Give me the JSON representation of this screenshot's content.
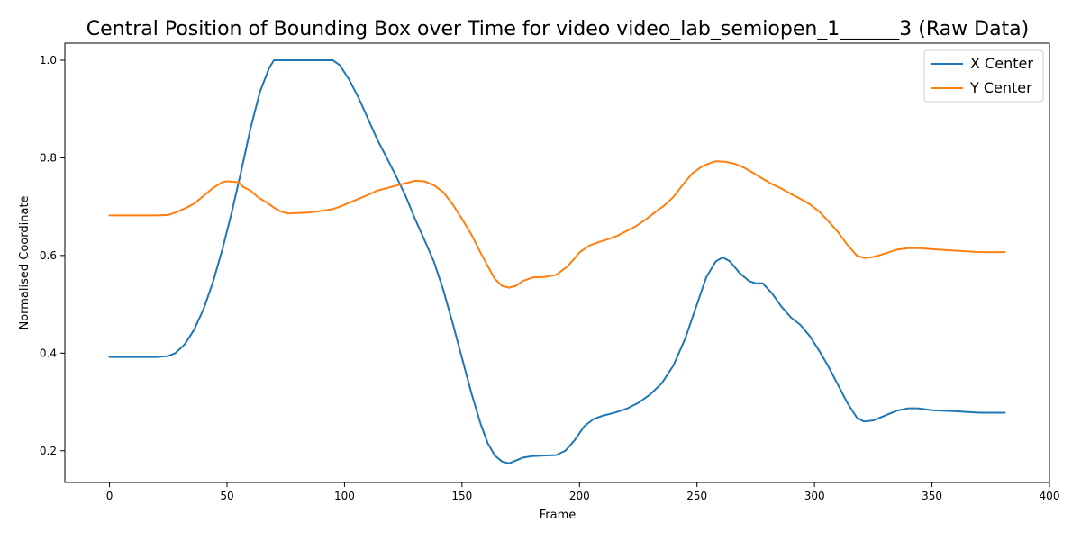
{
  "chart_data": {
    "type": "line",
    "title": "Central Position of Bounding Box over Time for video video_lab_semiopen_1______3 (Raw Data)",
    "xlabel": "Frame",
    "ylabel": "Normalised Coordinate",
    "xlim": [
      -19,
      400
    ],
    "ylim": [
      0.135,
      1.035
    ],
    "xticks": [
      0,
      50,
      100,
      150,
      200,
      250,
      300,
      350,
      400
    ],
    "yticks": [
      0.2,
      0.4,
      0.6,
      0.8,
      1.0
    ],
    "xtick_labels": [
      "0",
      "50",
      "100",
      "150",
      "200",
      "250",
      "300",
      "350",
      "400"
    ],
    "ytick_labels": [
      "0.2",
      "0.4",
      "0.6",
      "0.8",
      "1.0"
    ],
    "grid": false,
    "legend_position": "top-right",
    "series": [
      {
        "name": "X Center",
        "color": "#1f77b4",
        "points": [
          [
            0,
            0.392
          ],
          [
            10,
            0.392
          ],
          [
            20,
            0.392
          ],
          [
            25,
            0.394
          ],
          [
            28,
            0.4
          ],
          [
            32,
            0.418
          ],
          [
            36,
            0.448
          ],
          [
            40,
            0.49
          ],
          [
            44,
            0.545
          ],
          [
            48,
            0.612
          ],
          [
            52,
            0.688
          ],
          [
            56,
            0.772
          ],
          [
            60,
            0.86
          ],
          [
            64,
            0.935
          ],
          [
            68,
            0.985
          ],
          [
            70,
            1.0
          ],
          [
            80,
            1.0
          ],
          [
            90,
            1.0
          ],
          [
            95,
            1.0
          ],
          [
            98,
            0.99
          ],
          [
            102,
            0.96
          ],
          [
            106,
            0.923
          ],
          [
            110,
            0.88
          ],
          [
            114,
            0.837
          ],
          [
            118,
            0.8
          ],
          [
            122,
            0.762
          ],
          [
            126,
            0.722
          ],
          [
            130,
            0.675
          ],
          [
            134,
            0.632
          ],
          [
            138,
            0.588
          ],
          [
            142,
            0.53
          ],
          [
            146,
            0.462
          ],
          [
            150,
            0.39
          ],
          [
            154,
            0.318
          ],
          [
            158,
            0.254
          ],
          [
            161,
            0.215
          ],
          [
            164,
            0.19
          ],
          [
            167,
            0.178
          ],
          [
            170,
            0.174
          ],
          [
            173,
            0.18
          ],
          [
            176,
            0.186
          ],
          [
            180,
            0.189
          ],
          [
            185,
            0.19
          ],
          [
            190,
            0.191
          ],
          [
            194,
            0.2
          ],
          [
            198,
            0.222
          ],
          [
            202,
            0.25
          ],
          [
            206,
            0.265
          ],
          [
            210,
            0.272
          ],
          [
            215,
            0.278
          ],
          [
            220,
            0.286
          ],
          [
            225,
            0.298
          ],
          [
            230,
            0.315
          ],
          [
            235,
            0.338
          ],
          [
            240,
            0.375
          ],
          [
            245,
            0.43
          ],
          [
            250,
            0.5
          ],
          [
            254,
            0.556
          ],
          [
            258,
            0.588
          ],
          [
            261,
            0.596
          ],
          [
            264,
            0.588
          ],
          [
            268,
            0.565
          ],
          [
            272,
            0.548
          ],
          [
            275,
            0.543
          ],
          [
            278,
            0.543
          ],
          [
            282,
            0.522
          ],
          [
            286,
            0.495
          ],
          [
            290,
            0.473
          ],
          [
            294,
            0.458
          ],
          [
            298,
            0.435
          ],
          [
            302,
            0.405
          ],
          [
            306,
            0.372
          ],
          [
            310,
            0.335
          ],
          [
            314,
            0.298
          ],
          [
            318,
            0.268
          ],
          [
            321,
            0.26
          ],
          [
            325,
            0.262
          ],
          [
            330,
            0.272
          ],
          [
            335,
            0.282
          ],
          [
            340,
            0.287
          ],
          [
            344,
            0.287
          ],
          [
            350,
            0.283
          ],
          [
            360,
            0.281
          ],
          [
            370,
            0.278
          ],
          [
            381,
            0.278
          ]
        ]
      },
      {
        "name": "Y Center",
        "color": "#ff7f0e",
        "points": [
          [
            0,
            0.682
          ],
          [
            10,
            0.682
          ],
          [
            20,
            0.682
          ],
          [
            25,
            0.683
          ],
          [
            28,
            0.688
          ],
          [
            32,
            0.696
          ],
          [
            36,
            0.706
          ],
          [
            40,
            0.722
          ],
          [
            44,
            0.738
          ],
          [
            48,
            0.75
          ],
          [
            50,
            0.752
          ],
          [
            55,
            0.75
          ],
          [
            57,
            0.74
          ],
          [
            60,
            0.733
          ],
          [
            63,
            0.72
          ],
          [
            67,
            0.708
          ],
          [
            70,
            0.698
          ],
          [
            73,
            0.69
          ],
          [
            76,
            0.686
          ],
          [
            80,
            0.687
          ],
          [
            85,
            0.688
          ],
          [
            90,
            0.691
          ],
          [
            95,
            0.695
          ],
          [
            98,
            0.7
          ],
          [
            102,
            0.708
          ],
          [
            106,
            0.716
          ],
          [
            110,
            0.724
          ],
          [
            114,
            0.733
          ],
          [
            118,
            0.738
          ],
          [
            122,
            0.743
          ],
          [
            126,
            0.748
          ],
          [
            130,
            0.753
          ],
          [
            134,
            0.752
          ],
          [
            138,
            0.744
          ],
          [
            142,
            0.73
          ],
          [
            146,
            0.705
          ],
          [
            150,
            0.675
          ],
          [
            154,
            0.643
          ],
          [
            158,
            0.605
          ],
          [
            161,
            0.578
          ],
          [
            164,
            0.552
          ],
          [
            167,
            0.538
          ],
          [
            170,
            0.534
          ],
          [
            173,
            0.538
          ],
          [
            176,
            0.548
          ],
          [
            180,
            0.555
          ],
          [
            185,
            0.556
          ],
          [
            190,
            0.56
          ],
          [
            195,
            0.578
          ],
          [
            200,
            0.606
          ],
          [
            204,
            0.62
          ],
          [
            208,
            0.627
          ],
          [
            212,
            0.633
          ],
          [
            216,
            0.64
          ],
          [
            220,
            0.65
          ],
          [
            224,
            0.66
          ],
          [
            228,
            0.673
          ],
          [
            232,
            0.688
          ],
          [
            236,
            0.702
          ],
          [
            240,
            0.72
          ],
          [
            244,
            0.745
          ],
          [
            248,
            0.768
          ],
          [
            252,
            0.782
          ],
          [
            256,
            0.79
          ],
          [
            258,
            0.793
          ],
          [
            262,
            0.792
          ],
          [
            266,
            0.788
          ],
          [
            270,
            0.78
          ],
          [
            274,
            0.769
          ],
          [
            278,
            0.757
          ],
          [
            282,
            0.746
          ],
          [
            286,
            0.737
          ],
          [
            290,
            0.726
          ],
          [
            294,
            0.716
          ],
          [
            298,
            0.705
          ],
          [
            302,
            0.69
          ],
          [
            306,
            0.67
          ],
          [
            310,
            0.648
          ],
          [
            314,
            0.622
          ],
          [
            318,
            0.6
          ],
          [
            321,
            0.595
          ],
          [
            325,
            0.597
          ],
          [
            330,
            0.604
          ],
          [
            335,
            0.612
          ],
          [
            340,
            0.615
          ],
          [
            345,
            0.615
          ],
          [
            350,
            0.613
          ],
          [
            360,
            0.61
          ],
          [
            370,
            0.607
          ],
          [
            381,
            0.607
          ]
        ]
      }
    ]
  }
}
